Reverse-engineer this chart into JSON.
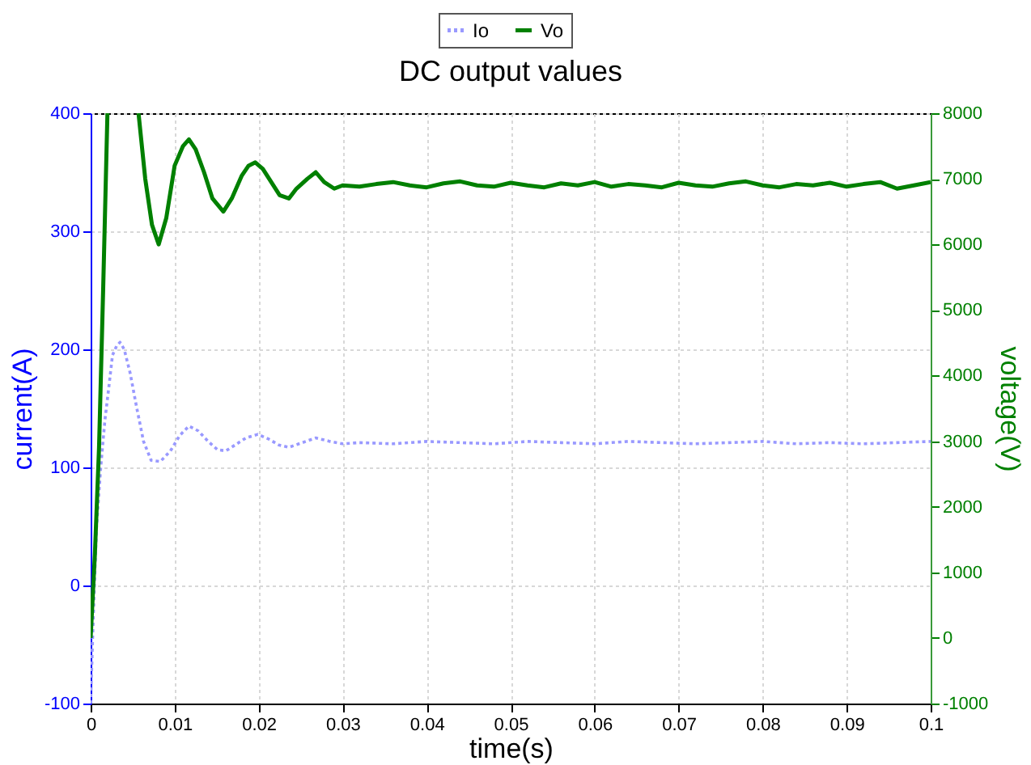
{
  "chart_data": {
    "type": "line",
    "title": "DC output values",
    "xlabel": "time(s)",
    "ylabel": "current(A)",
    "y2label": "voltage(V)",
    "xlim": [
      0,
      0.1
    ],
    "xticks": [
      0,
      0.01,
      0.02,
      0.03,
      0.04,
      0.05,
      0.06,
      0.07,
      0.08,
      0.09,
      0.1
    ],
    "ylim": [
      -100,
      400
    ],
    "yticks": [
      -100,
      0,
      100,
      200,
      300,
      400
    ],
    "y2lim": [
      -1000,
      8000
    ],
    "y2ticks": [
      -1000,
      0,
      1000,
      2000,
      3000,
      4000,
      5000,
      6000,
      7000,
      8000
    ],
    "grid": true,
    "legend": "top",
    "marker": "none",
    "series": [
      {
        "name": "Io",
        "color": "#9999ff",
        "line_style": "dotted",
        "x": [
          0,
          0.0003,
          0.0007,
          0.0012,
          0.0017,
          0.0022,
          0.0026,
          0.0031,
          0.0035,
          0.004,
          0.0047,
          0.0055,
          0.0063,
          0.0072,
          0.0083,
          0.0095,
          0.0106,
          0.0117,
          0.0128,
          0.014,
          0.0151,
          0.0161,
          0.0172,
          0.0185,
          0.0199,
          0.0212,
          0.0224,
          0.0236,
          0.0248,
          0.0268,
          0.0285,
          0.03,
          0.032,
          0.036,
          0.04,
          0.044,
          0.048,
          0.052,
          0.056,
          0.06,
          0.064,
          0.068,
          0.072,
          0.076,
          0.08,
          0.084,
          0.088,
          0.092,
          0.096,
          0.1
        ],
        "values": [
          -100,
          -30,
          49,
          100,
          140,
          170,
          195,
          203,
          206,
          200,
          180,
          150,
          122,
          106,
          105,
          114,
          127,
          135,
          131,
          122,
          115,
          114,
          119,
          125,
          128,
          124,
          119,
          117,
          120,
          125,
          122,
          120,
          121,
          120,
          122,
          121,
          120,
          122,
          121,
          120,
          122,
          121,
          120,
          121,
          122,
          120,
          121,
          120,
          121,
          122
        ]
      },
      {
        "name": "Vo",
        "color": "#008000",
        "line_style": "solid",
        "axis": "y2",
        "x": [
          0,
          0.0005,
          0.001,
          0.0015,
          0.002,
          0.004,
          0.0057,
          0.0065,
          0.0073,
          0.0081,
          0.009,
          0.01,
          0.011,
          0.0117,
          0.0125,
          0.0135,
          0.0145,
          0.0158,
          0.0168,
          0.018,
          0.0188,
          0.0196,
          0.0205,
          0.0215,
          0.0225,
          0.0236,
          0.0245,
          0.0258,
          0.0268,
          0.0278,
          0.029,
          0.03,
          0.032,
          0.034,
          0.036,
          0.038,
          0.04,
          0.042,
          0.044,
          0.046,
          0.048,
          0.05,
          0.052,
          0.054,
          0.056,
          0.058,
          0.06,
          0.062,
          0.064,
          0.066,
          0.068,
          0.07,
          0.072,
          0.074,
          0.076,
          0.078,
          0.08,
          0.082,
          0.084,
          0.086,
          0.088,
          0.09,
          0.092,
          0.094,
          0.096,
          0.098,
          0.1
        ],
        "values": [
          0,
          1260,
          2900,
          5360,
          8000,
          null,
          8000,
          7000,
          6300,
          6000,
          6400,
          7200,
          7500,
          7600,
          7450,
          7100,
          6700,
          6500,
          6700,
          7050,
          7200,
          7250,
          7150,
          6950,
          6750,
          6700,
          6850,
          7000,
          7100,
          6950,
          6850,
          6900,
          6880,
          6920,
          6950,
          6900,
          6870,
          6930,
          6960,
          6900,
          6880,
          6940,
          6900,
          6870,
          6930,
          6900,
          6950,
          6880,
          6920,
          6900,
          6870,
          6940,
          6900,
          6880,
          6930,
          6960,
          6900,
          6870,
          6920,
          6900,
          6940,
          6880,
          6920,
          6950,
          6850,
          6900,
          6950
        ]
      }
    ]
  }
}
